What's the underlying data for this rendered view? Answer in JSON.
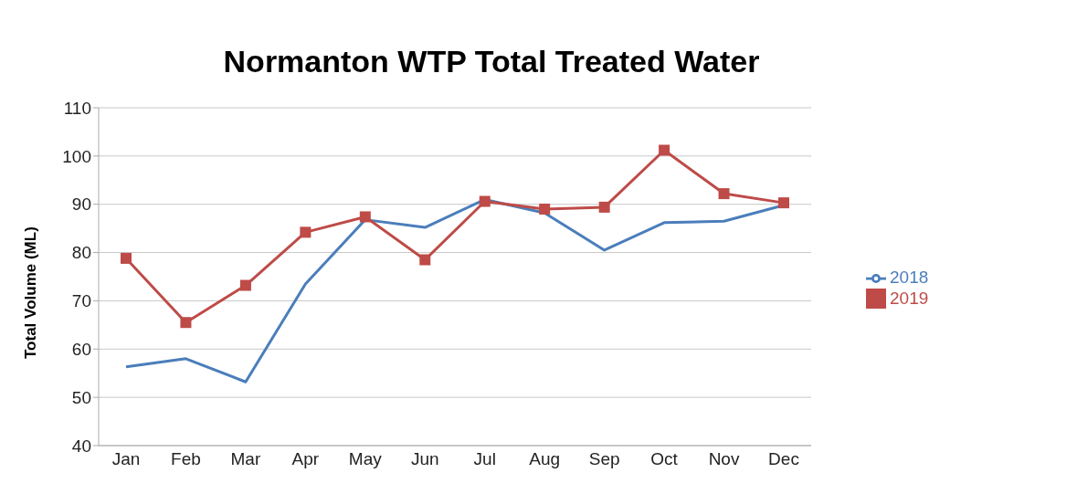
{
  "chart_data": {
    "type": "line",
    "title": "Normanton WTP Total Treated Water",
    "ylabel": "Total Volume (ML)",
    "categories": [
      "Jan",
      "Feb",
      "Mar",
      "Apr",
      "May",
      "Jun",
      "Jul",
      "Aug",
      "Sep",
      "Oct",
      "Nov",
      "Dec"
    ],
    "series": [
      {
        "name": "2018",
        "color": "#4a7ebb",
        "marker": "none",
        "values": [
          56.3,
          58,
          53.2,
          73.5,
          86.8,
          85.2,
          91,
          88.2,
          80.5,
          86.2,
          86.5,
          89.8
        ]
      },
      {
        "name": "2019",
        "color": "#be4b48",
        "marker": "square",
        "values": [
          78.8,
          65.5,
          73.2,
          84.2,
          87.4,
          78.5,
          90.6,
          89,
          89.4,
          101.2,
          92.2,
          90.3
        ]
      }
    ],
    "ylim": [
      40,
      110
    ],
    "yticks": [
      40,
      50,
      60,
      70,
      80,
      90,
      100,
      110
    ],
    "grid": "y",
    "legend": "right"
  }
}
